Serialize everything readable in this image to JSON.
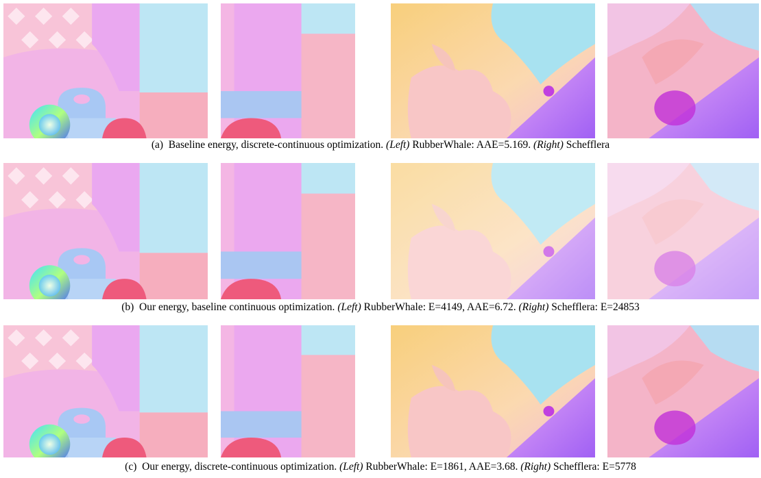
{
  "figure": {
    "rows": [
      {
        "label": "(a)",
        "description": "Baseline energy, discrete-continuous optimization.",
        "left_tag": "(Left)",
        "left_text": "RubberWhale: AAE=5.169.",
        "right_tag": "(Right)",
        "right_text": "Schefflera"
      },
      {
        "label": "(b)",
        "description": "Our energy, baseline continuous optimization.",
        "left_tag": "(Left)",
        "left_text": "RubberWhale: E=4149, AAE=6.72.",
        "right_tag": "(Right)",
        "right_text": "Schefflera: E=24853"
      },
      {
        "label": "(c)",
        "description": "Our energy, discrete-continuous optimization.",
        "left_tag": "(Left)",
        "left_text": "RubberWhale: E=1861, AAE=3.68.",
        "right_tag": "(Right)",
        "right_text": "Schefflera: E=5778"
      }
    ]
  }
}
